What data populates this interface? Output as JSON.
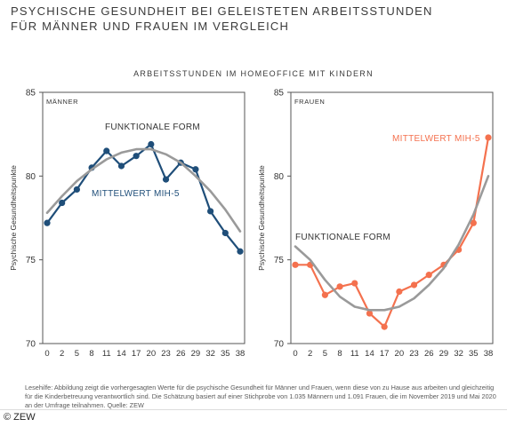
{
  "title_line1": "PSYCHISCHE GESUNDHEIT BEI GELEISTETEN ARBEITSSTUNDEN",
  "title_line2": "FÜR MÄNNER UND FRAUEN IM VERGLEICH",
  "subtitle": "ARBEITSSTUNDEN IM HOMEOFFICE MIT KINDERN",
  "note": "Lesehilfe: Abbildung zeigt die vorhergesagten Werte für die psychische Gesundheit für Männer und Frauen, wenn diese von zu Hause aus arbeiten und gleichzeitig für die Kinderbetreuung verantwortlich sind. Die Schätzung basiert auf einer Stichprobe von 1.035 Männern und 1.091 Frauen, die im November 2019 und Mai 2020 an der Umfrage teilnahmen. Quelle: ZEW",
  "footer": "© ZEW",
  "colors": {
    "men": "#1f4e79",
    "women": "#f4714e",
    "fit": "#9a9a9a",
    "frame": "#555555",
    "bg": "#ffffff"
  },
  "chart_data": [
    {
      "type": "line",
      "panel_label": "MÄNNER",
      "ylabel": "Psychische Gesundheitspunkte",
      "ylim": [
        70,
        85
      ],
      "yticks": [
        70,
        75,
        80,
        85
      ],
      "x": [
        0,
        2,
        5,
        8,
        11,
        14,
        17,
        20,
        23,
        26,
        29,
        32,
        35,
        38
      ],
      "series": [
        {
          "name": "MITTELWERT MIH-5",
          "kind": "markers",
          "color": "#1f4e79",
          "values": [
            77.2,
            78.4,
            79.2,
            80.5,
            81.5,
            80.6,
            81.2,
            81.9,
            79.8,
            80.8,
            80.4,
            77.9,
            76.6,
            75.5
          ]
        },
        {
          "name": "FUNKTIONALE FORM",
          "kind": "line",
          "color": "#9a9a9a",
          "values": [
            77.8,
            78.8,
            79.7,
            80.4,
            81.0,
            81.4,
            81.6,
            81.6,
            81.3,
            80.8,
            80.0,
            79.1,
            78.0,
            76.7
          ]
        }
      ]
    },
    {
      "type": "line",
      "panel_label": "FRAUEN",
      "ylabel": "Psychische Gesundheitspunkte",
      "ylim": [
        70,
        85
      ],
      "yticks": [
        70,
        75,
        80,
        85
      ],
      "x": [
        0,
        2,
        5,
        8,
        11,
        14,
        17,
        20,
        23,
        26,
        29,
        32,
        35,
        38
      ],
      "series": [
        {
          "name": "MITTELWERT MIH-5",
          "kind": "markers",
          "color": "#f4714e",
          "values": [
            74.7,
            74.7,
            72.9,
            73.4,
            73.6,
            71.8,
            71.0,
            73.1,
            73.5,
            74.1,
            74.7,
            75.6,
            77.2,
            82.3
          ]
        },
        {
          "name": "FUNKTIONALE FORM",
          "kind": "line",
          "color": "#9a9a9a",
          "values": [
            75.8,
            75.0,
            73.8,
            72.8,
            72.2,
            72.0,
            72.0,
            72.2,
            72.7,
            73.5,
            74.5,
            75.9,
            77.7,
            80.0
          ]
        }
      ]
    }
  ],
  "legend_labels": {
    "men_fit": "FUNKTIONALE FORM",
    "men_mean": "MITTELWERT MIH-5",
    "women_fit": "FUNKTIONALE FORM",
    "women_mean": "MITTELWERT MIH-5"
  }
}
